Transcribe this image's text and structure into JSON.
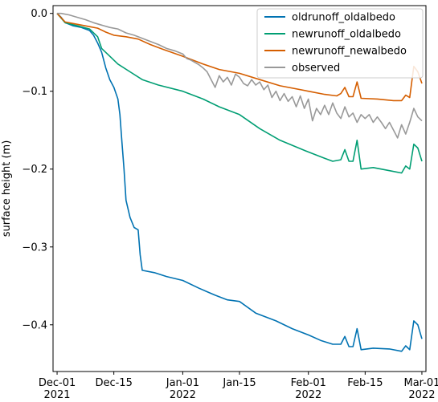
{
  "chart_data": {
    "type": "line",
    "title": "",
    "xlabel": "",
    "ylabel": "surface height (m)",
    "x_ticks": [
      {
        "date": "2021-12-01",
        "label1": "Dec-01",
        "label2": "2021"
      },
      {
        "date": "2021-12-15",
        "label1": "Dec-15",
        "label2": ""
      },
      {
        "date": "2022-01-01",
        "label1": "Jan-01",
        "label2": "2022"
      },
      {
        "date": "2022-01-15",
        "label1": "Jan-15",
        "label2": ""
      },
      {
        "date": "2022-02-01",
        "label1": "Feb-01",
        "label2": "2022"
      },
      {
        "date": "2022-02-15",
        "label1": "Feb-15",
        "label2": ""
      },
      {
        "date": "2022-03-01",
        "label1": "Mar-01",
        "label2": "2022"
      }
    ],
    "xlim": [
      "2021-11-30",
      "2022-03-02"
    ],
    "y_ticks": [
      0.0,
      -0.1,
      -0.2,
      -0.3,
      -0.4
    ],
    "y_tick_labels": [
      "0.0",
      "−0.1",
      "−0.2",
      "−0.3",
      "−0.4"
    ],
    "ylim": [
      -0.46,
      0.01
    ],
    "grid": false,
    "legend_position": "top-right",
    "series": [
      {
        "name": "oldrunoff_oldalbedo",
        "color": "#0072b2",
        "points": [
          [
            "2021-12-01",
            0.0
          ],
          [
            "2021-12-02",
            -0.005
          ],
          [
            "2021-12-03",
            -0.012
          ],
          [
            "2021-12-05",
            -0.016
          ],
          [
            "2021-12-07",
            -0.018
          ],
          [
            "2021-12-09",
            -0.022
          ],
          [
            "2021-12-10",
            -0.028
          ],
          [
            "2021-12-11",
            -0.038
          ],
          [
            "2021-12-12",
            -0.05
          ],
          [
            "2021-12-13",
            -0.07
          ],
          [
            "2021-12-14",
            -0.085
          ],
          [
            "2021-12-15",
            -0.095
          ],
          [
            "2021-12-16",
            -0.11
          ],
          [
            "2021-12-16T12",
            -0.13
          ],
          [
            "2021-12-17",
            -0.165
          ],
          [
            "2021-12-17T12",
            -0.2
          ],
          [
            "2021-12-18",
            -0.24
          ],
          [
            "2021-12-19",
            -0.262
          ],
          [
            "2021-12-20",
            -0.275
          ],
          [
            "2021-12-21",
            -0.278
          ],
          [
            "2021-12-21T12",
            -0.31
          ],
          [
            "2021-12-22",
            -0.33
          ],
          [
            "2021-12-25",
            -0.333
          ],
          [
            "2021-12-28",
            -0.338
          ],
          [
            "2022-01-01",
            -0.343
          ],
          [
            "2022-01-05",
            -0.353
          ],
          [
            "2022-01-09",
            -0.362
          ],
          [
            "2022-01-12",
            -0.368
          ],
          [
            "2022-01-15",
            -0.37
          ],
          [
            "2022-01-19",
            -0.385
          ],
          [
            "2022-01-24",
            -0.395
          ],
          [
            "2022-01-28",
            -0.405
          ],
          [
            "2022-02-01",
            -0.413
          ],
          [
            "2022-02-04",
            -0.42
          ],
          [
            "2022-02-07",
            -0.425
          ],
          [
            "2022-02-09",
            -0.425
          ],
          [
            "2022-02-10",
            -0.415
          ],
          [
            "2022-02-11",
            -0.428
          ],
          [
            "2022-02-12",
            -0.428
          ],
          [
            "2022-02-13",
            -0.405
          ],
          [
            "2022-02-14",
            -0.432
          ],
          [
            "2022-02-17",
            -0.43
          ],
          [
            "2022-02-21",
            -0.431
          ],
          [
            "2022-02-24",
            -0.434
          ],
          [
            "2022-02-25",
            -0.427
          ],
          [
            "2022-02-26",
            -0.432
          ],
          [
            "2022-02-27",
            -0.395
          ],
          [
            "2022-02-28",
            -0.4
          ],
          [
            "2022-03-01",
            -0.418
          ]
        ]
      },
      {
        "name": "newrunoff_oldalbedo",
        "color": "#009e73",
        "points": [
          [
            "2021-12-01",
            0.0
          ],
          [
            "2021-12-03",
            -0.012
          ],
          [
            "2021-12-06",
            -0.016
          ],
          [
            "2021-12-09",
            -0.02
          ],
          [
            "2021-12-11",
            -0.03
          ],
          [
            "2021-12-12",
            -0.045
          ],
          [
            "2021-12-14",
            -0.055
          ],
          [
            "2021-12-16",
            -0.065
          ],
          [
            "2021-12-19",
            -0.075
          ],
          [
            "2021-12-22",
            -0.085
          ],
          [
            "2021-12-26",
            -0.092
          ],
          [
            "2022-01-01",
            -0.1
          ],
          [
            "2022-01-06",
            -0.11
          ],
          [
            "2022-01-10",
            -0.12
          ],
          [
            "2022-01-15",
            -0.13
          ],
          [
            "2022-01-20",
            -0.148
          ],
          [
            "2022-01-25",
            -0.163
          ],
          [
            "2022-02-01",
            -0.178
          ],
          [
            "2022-02-05",
            -0.186
          ],
          [
            "2022-02-07",
            -0.19
          ],
          [
            "2022-02-09",
            -0.188
          ],
          [
            "2022-02-10",
            -0.175
          ],
          [
            "2022-02-11",
            -0.19
          ],
          [
            "2022-02-12",
            -0.19
          ],
          [
            "2022-02-13",
            -0.163
          ],
          [
            "2022-02-14",
            -0.2
          ],
          [
            "2022-02-17",
            -0.198
          ],
          [
            "2022-02-21",
            -0.202
          ],
          [
            "2022-02-24",
            -0.205
          ],
          [
            "2022-02-25",
            -0.196
          ],
          [
            "2022-02-26",
            -0.2
          ],
          [
            "2022-02-27",
            -0.168
          ],
          [
            "2022-02-28",
            -0.173
          ],
          [
            "2022-03-01",
            -0.19
          ]
        ]
      },
      {
        "name": "newrunoff_newalbedo",
        "color": "#d55e00",
        "points": [
          [
            "2021-12-01",
            0.0
          ],
          [
            "2021-12-03",
            -0.011
          ],
          [
            "2021-12-06",
            -0.014
          ],
          [
            "2021-12-09",
            -0.017
          ],
          [
            "2021-12-11",
            -0.019
          ],
          [
            "2021-12-13",
            -0.024
          ],
          [
            "2021-12-15",
            -0.028
          ],
          [
            "2021-12-18",
            -0.03
          ],
          [
            "2021-12-21",
            -0.033
          ],
          [
            "2021-12-24",
            -0.04
          ],
          [
            "2021-12-27",
            -0.046
          ],
          [
            "2022-01-01",
            -0.055
          ],
          [
            "2022-01-06",
            -0.065
          ],
          [
            "2022-01-10",
            -0.072
          ],
          [
            "2022-01-15",
            -0.077
          ],
          [
            "2022-01-20",
            -0.085
          ],
          [
            "2022-01-25",
            -0.093
          ],
          [
            "2022-02-01",
            -0.1
          ],
          [
            "2022-02-05",
            -0.104
          ],
          [
            "2022-02-08",
            -0.106
          ],
          [
            "2022-02-09",
            -0.103
          ],
          [
            "2022-02-10",
            -0.095
          ],
          [
            "2022-02-11",
            -0.107
          ],
          [
            "2022-02-12",
            -0.107
          ],
          [
            "2022-02-13",
            -0.088
          ],
          [
            "2022-02-14",
            -0.109
          ],
          [
            "2022-02-18",
            -0.11
          ],
          [
            "2022-02-22",
            -0.112
          ],
          [
            "2022-02-24",
            -0.112
          ],
          [
            "2022-02-25",
            -0.105
          ],
          [
            "2022-02-26",
            -0.108
          ],
          [
            "2022-02-27",
            -0.068
          ],
          [
            "2022-02-28",
            -0.075
          ],
          [
            "2022-03-01",
            -0.09
          ]
        ]
      },
      {
        "name": "observed",
        "color": "#999999",
        "points": [
          [
            "2021-12-01",
            0.0
          ],
          [
            "2021-12-02",
            0.0
          ],
          [
            "2021-12-04",
            -0.002
          ],
          [
            "2021-12-06",
            -0.005
          ],
          [
            "2021-12-08",
            -0.008
          ],
          [
            "2021-12-10",
            -0.012
          ],
          [
            "2021-12-12",
            -0.015
          ],
          [
            "2021-12-14",
            -0.018
          ],
          [
            "2021-12-16",
            -0.02
          ],
          [
            "2021-12-18",
            -0.025
          ],
          [
            "2021-12-20",
            -0.028
          ],
          [
            "2021-12-22",
            -0.032
          ],
          [
            "2021-12-24",
            -0.036
          ],
          [
            "2021-12-26",
            -0.04
          ],
          [
            "2021-12-28",
            -0.045
          ],
          [
            "2021-12-30",
            -0.048
          ],
          [
            "2022-01-01",
            -0.052
          ],
          [
            "2022-01-02",
            -0.058
          ],
          [
            "2022-01-03",
            -0.06
          ],
          [
            "2022-01-05",
            -0.066
          ],
          [
            "2022-01-06",
            -0.07
          ],
          [
            "2022-01-07",
            -0.075
          ],
          [
            "2022-01-08",
            -0.085
          ],
          [
            "2022-01-09",
            -0.095
          ],
          [
            "2022-01-10",
            -0.08
          ],
          [
            "2022-01-11",
            -0.088
          ],
          [
            "2022-01-12",
            -0.082
          ],
          [
            "2022-01-13",
            -0.092
          ],
          [
            "2022-01-14",
            -0.078
          ],
          [
            "2022-01-15",
            -0.082
          ],
          [
            "2022-01-16",
            -0.09
          ],
          [
            "2022-01-17",
            -0.093
          ],
          [
            "2022-01-18",
            -0.085
          ],
          [
            "2022-01-19",
            -0.092
          ],
          [
            "2022-01-20",
            -0.088
          ],
          [
            "2022-01-21",
            -0.098
          ],
          [
            "2022-01-22",
            -0.092
          ],
          [
            "2022-01-23",
            -0.108
          ],
          [
            "2022-01-24",
            -0.1
          ],
          [
            "2022-01-25",
            -0.112
          ],
          [
            "2022-01-26",
            -0.103
          ],
          [
            "2022-01-27",
            -0.113
          ],
          [
            "2022-01-28",
            -0.107
          ],
          [
            "2022-01-29",
            -0.12
          ],
          [
            "2022-01-30",
            -0.106
          ],
          [
            "2022-01-31",
            -0.122
          ],
          [
            "2022-02-01",
            -0.11
          ],
          [
            "2022-02-02",
            -0.138
          ],
          [
            "2022-02-03",
            -0.122
          ],
          [
            "2022-02-04",
            -0.13
          ],
          [
            "2022-02-05",
            -0.118
          ],
          [
            "2022-02-06",
            -0.13
          ],
          [
            "2022-02-07",
            -0.115
          ],
          [
            "2022-02-08",
            -0.128
          ],
          [
            "2022-02-09",
            -0.135
          ],
          [
            "2022-02-10",
            -0.12
          ],
          [
            "2022-02-11",
            -0.133
          ],
          [
            "2022-02-12",
            -0.128
          ],
          [
            "2022-02-13",
            -0.14
          ],
          [
            "2022-02-14",
            -0.13
          ],
          [
            "2022-02-15",
            -0.135
          ],
          [
            "2022-02-16",
            -0.13
          ],
          [
            "2022-02-17",
            -0.14
          ],
          [
            "2022-02-18",
            -0.133
          ],
          [
            "2022-02-19",
            -0.14
          ],
          [
            "2022-02-20",
            -0.148
          ],
          [
            "2022-02-21",
            -0.14
          ],
          [
            "2022-02-22",
            -0.15
          ],
          [
            "2022-02-23",
            -0.16
          ],
          [
            "2022-02-24",
            -0.143
          ],
          [
            "2022-02-25",
            -0.155
          ],
          [
            "2022-02-26",
            -0.14
          ],
          [
            "2022-02-27",
            -0.122
          ],
          [
            "2022-02-28",
            -0.133
          ],
          [
            "2022-03-01",
            -0.138
          ]
        ]
      }
    ]
  }
}
